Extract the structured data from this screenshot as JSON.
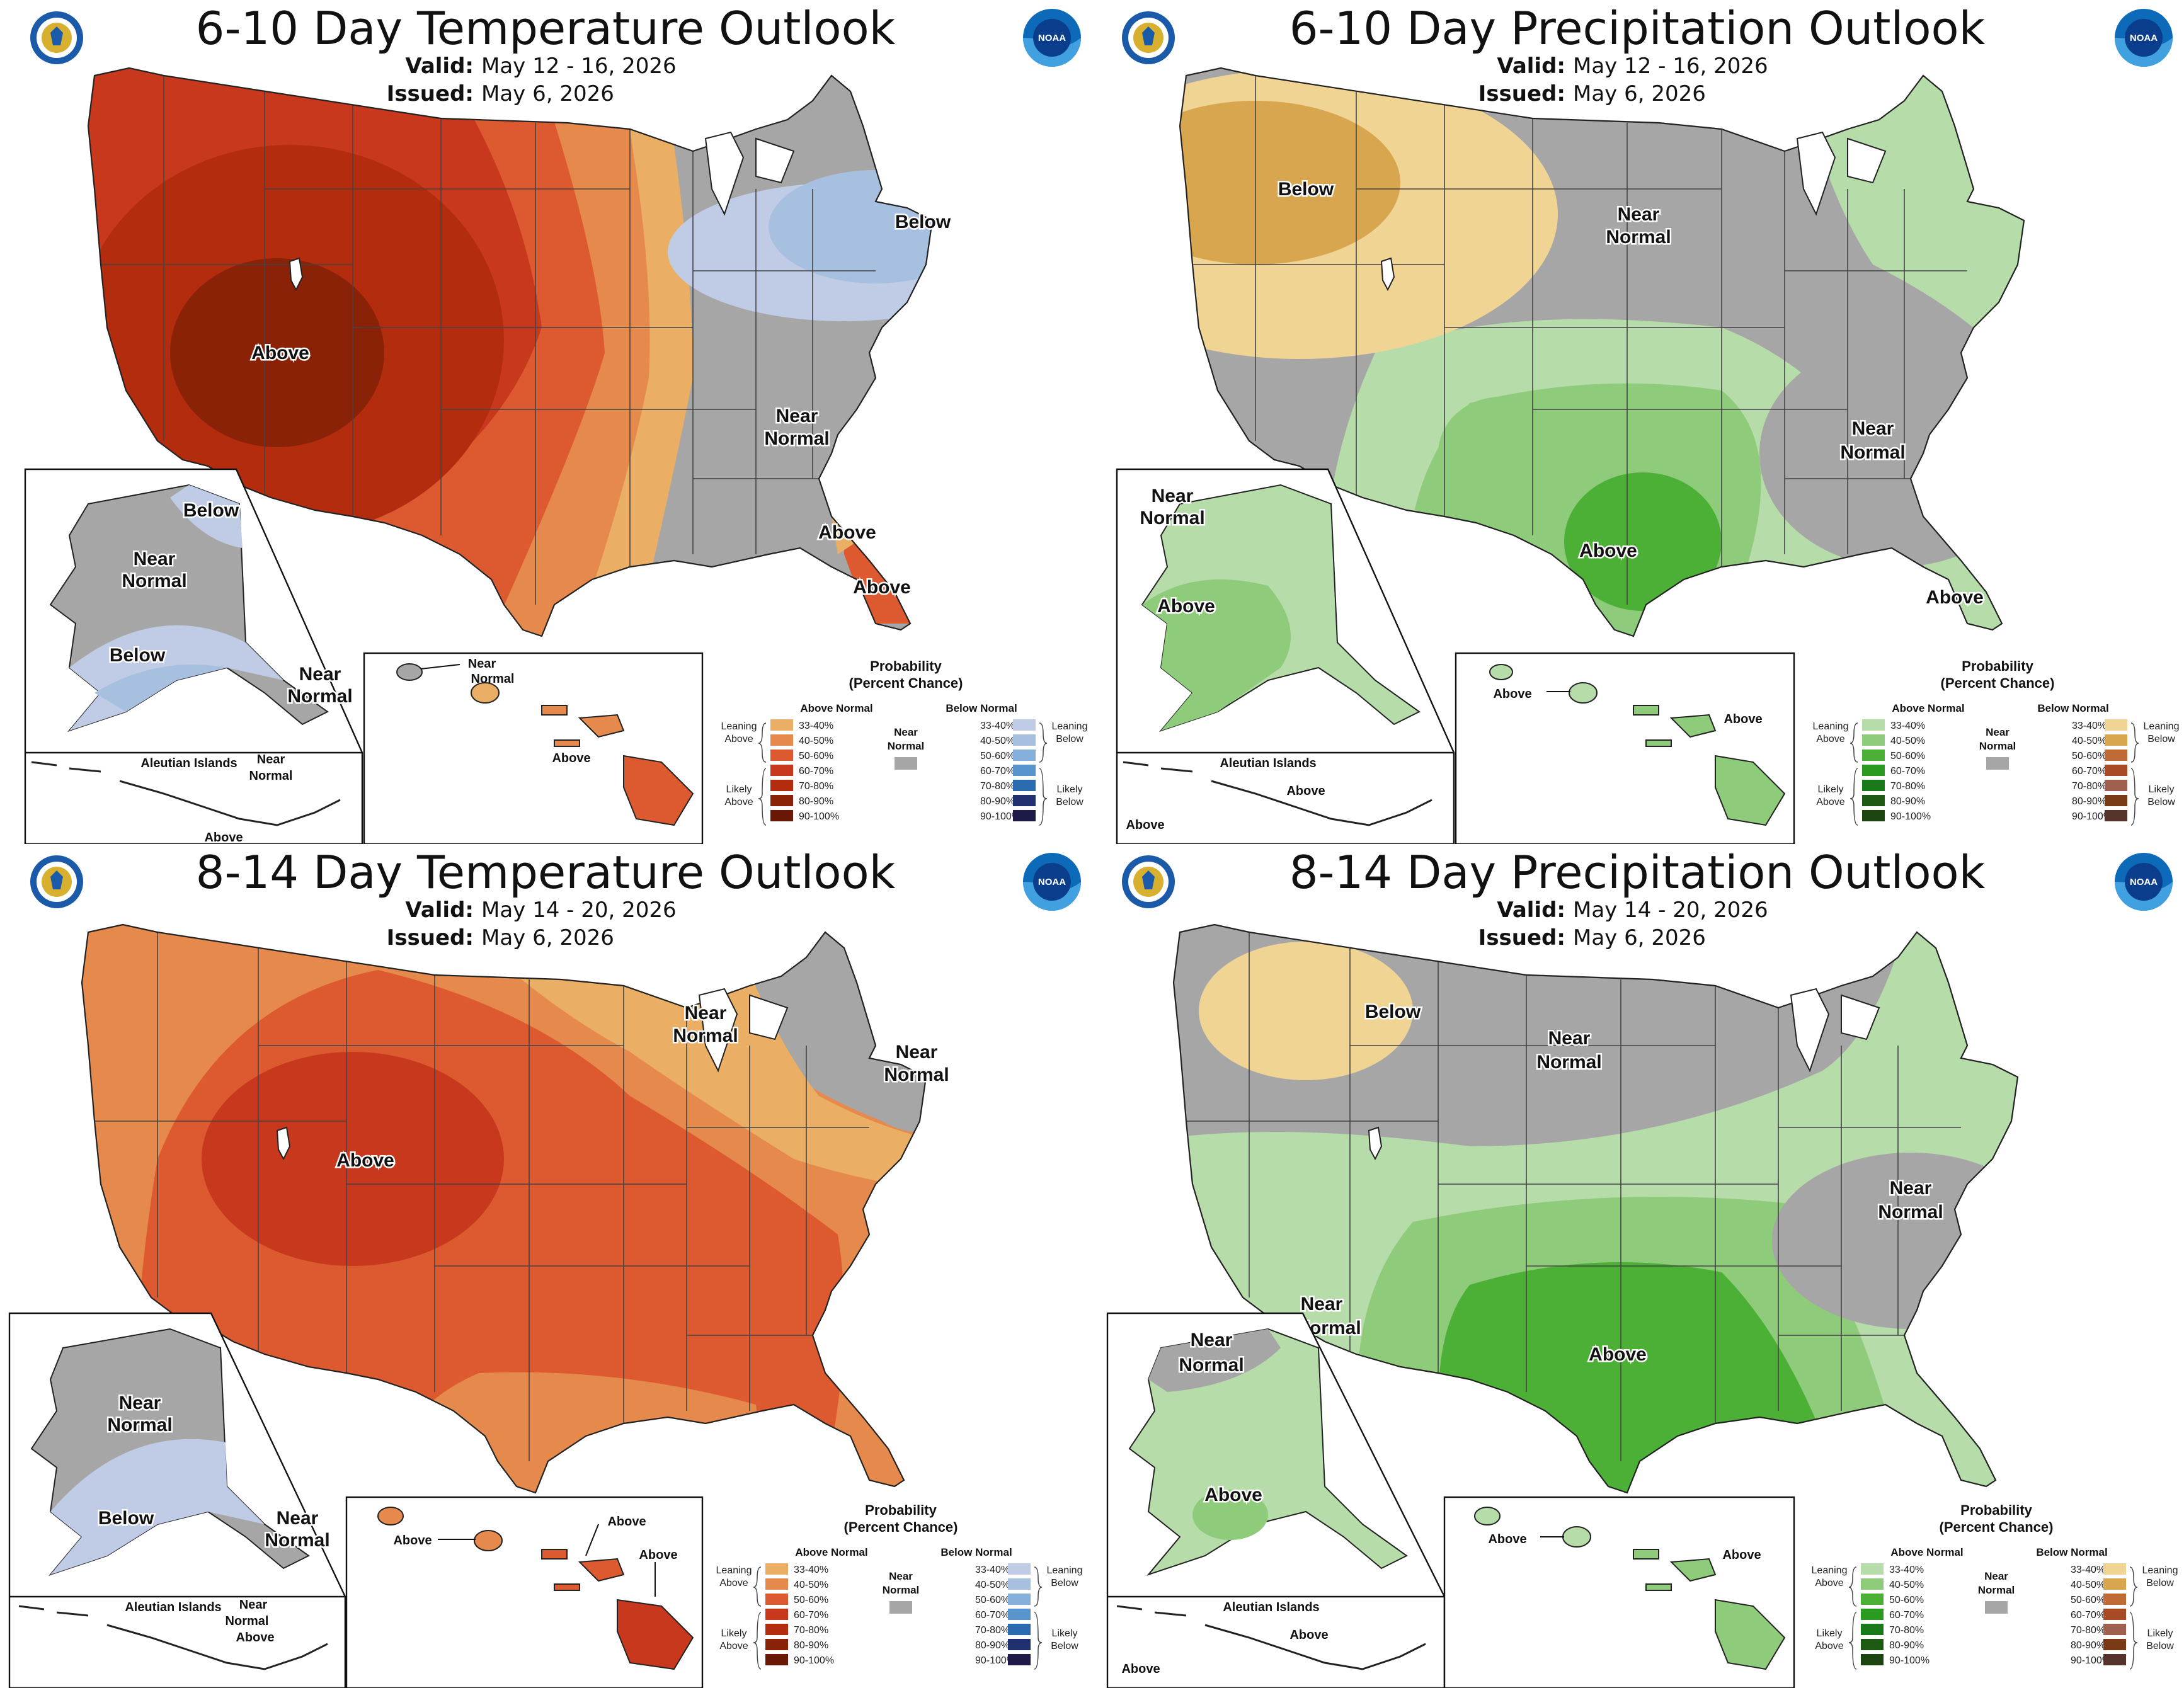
{
  "panels": [
    {
      "id": "temp-6-10",
      "title": "6-10 Day Temperature Outlook",
      "valid_label": "Valid:",
      "valid_value": "May 12 - 16, 2026",
      "issued_label": "Issued:",
      "issued_value": "May 6, 2026",
      "labels": {
        "above_main": "Above",
        "near_normal_1": "Near",
        "near_normal_2": "Normal",
        "below_ne": "Below",
        "above_fl_1": "Above",
        "above_fl_2": "Above",
        "ak_below_top": "Below",
        "ak_near_1": "Near",
        "ak_near_2": "Normal",
        "ak_below_bottom": "Below",
        "ak_near_se_1": "Near",
        "ak_near_se_2": "Normal",
        "aleutian_near_1": "Near",
        "aleutian_near_2": "Normal",
        "aleutian_above": "Above",
        "hi_near_1": "Near",
        "hi_near_2": "Normal",
        "hi_above": "Above"
      }
    },
    {
      "id": "precip-6-10",
      "title": "6-10 Day Precipitation Outlook",
      "valid_label": "Valid:",
      "valid_value": "May 12 - 16, 2026",
      "issued_label": "Issued:",
      "issued_value": "May 6, 2026",
      "labels": {
        "below_nw": "Below",
        "near_normal_1": "Near",
        "near_normal_2": "Normal",
        "near_se_1": "Near",
        "near_se_2": "Normal",
        "above_tx": "Above",
        "above_fl": "Above",
        "ak_near_1": "Near",
        "ak_near_2": "Normal",
        "ak_above": "Above",
        "aleutian_above": "Above",
        "aleutian_above_2": "Above",
        "hi_above_1": "Above",
        "hi_above_2": "Above"
      }
    },
    {
      "id": "temp-8-14",
      "title": "8-14 Day Temperature Outlook",
      "valid_label": "Valid:",
      "valid_value": "May 14 - 20, 2026",
      "issued_label": "Issued:",
      "issued_value": "May 6, 2026",
      "labels": {
        "above_main": "Above",
        "near_gl_1": "Near",
        "near_gl_2": "Normal",
        "near_ne_1": "Near",
        "near_ne_2": "Normal",
        "ak_near_1": "Near",
        "ak_near_2": "Normal",
        "ak_below": "Below",
        "ak_near_se_1": "Near",
        "ak_near_se_2": "Normal",
        "aleutian_near_1": "Near",
        "aleutian_near_2": "Normal",
        "aleutian_above": "Above",
        "hi_above_1": "Above",
        "hi_above_2": "Above",
        "hi_above_3": "Above"
      }
    },
    {
      "id": "precip-8-14",
      "title": "8-14 Day Precipitation Outlook",
      "valid_label": "Valid:",
      "valid_value": "May 14 - 20, 2026",
      "issued_label": "Issued:",
      "issued_value": "May 6, 2026",
      "labels": {
        "below_mt": "Below",
        "near_normal_1": "Near",
        "near_normal_2": "Normal",
        "near_se_1": "Near",
        "near_se_2": "Normal",
        "near_sw_1": "Near",
        "near_sw_2": "Normal",
        "above_tx": "Above",
        "ak_near_1": "Near",
        "ak_near_2": "Normal",
        "ak_above": "Above",
        "aleutian_above": "Above",
        "aleutian_above_2": "Above",
        "hi_above_1": "Above",
        "hi_above_2": "Above"
      }
    }
  ],
  "inset_labels": {
    "aleutian": "Aleutian Islands"
  },
  "legend": {
    "title_1": "Probability",
    "title_2": "(Percent Chance)",
    "above_normal": "Above Normal",
    "below_normal": "Below Normal",
    "near_1": "Near",
    "near_2": "Normal",
    "leaning_1": "Leaning",
    "likely_1": "Likely",
    "above": "Above",
    "below": "Below",
    "ranges": [
      "33-40%",
      "40-50%",
      "50-60%",
      "60-70%",
      "70-80%",
      "80-90%",
      "90-100%"
    ]
  },
  "colors": {
    "temp_above": [
      "#eaae64",
      "#e58a4c",
      "#dd5a30",
      "#c8381c",
      "#b42c0e",
      "#8a2208",
      "#6a1806"
    ],
    "temp_below": [
      "#c0cce6",
      "#a8c0e0",
      "#86b0dc",
      "#5a94cc",
      "#2a6aae",
      "#20306e",
      "#1e1a48"
    ],
    "precip_above": [
      "#b6dcaa",
      "#8ecb7a",
      "#4cb036",
      "#2a9a20",
      "#1a7a1a",
      "#1e5a14",
      "#1c4410"
    ],
    "precip_below": [
      "#f0d494",
      "#d9a650",
      "#c06a36",
      "#a84a26",
      "#a06050",
      "#7a3a16",
      "#55322a"
    ],
    "near_normal": "#a6a6a6",
    "ocean": "#ffffff"
  },
  "logos": {
    "noaa_text": "NOAA"
  }
}
